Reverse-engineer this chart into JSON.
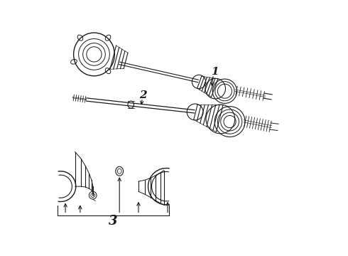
{
  "background_color": "#ffffff",
  "line_color": "#1a1a1a",
  "label_1": "1",
  "label_2": "2",
  "label_3": "3",
  "fig_width": 4.9,
  "fig_height": 3.6,
  "dpi": 100
}
